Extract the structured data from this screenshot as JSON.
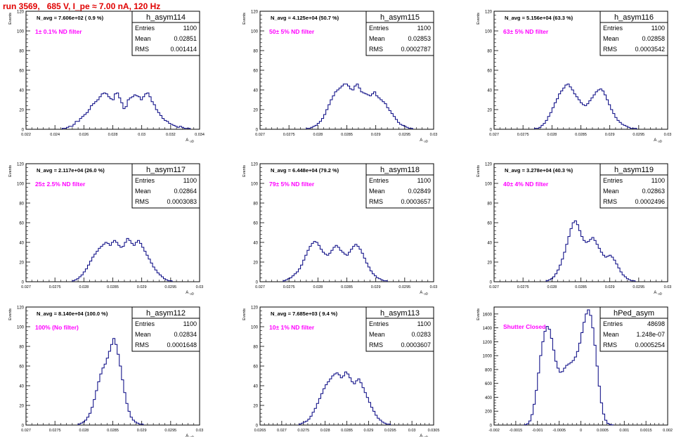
{
  "page_title": "run 3569,   685 V, I_pe ≈ 7.00 nA, 120 Hz",
  "colors": {
    "hist": "#000080",
    "label": "#ff00ff",
    "title": "#e00000",
    "frame": "#000000"
  },
  "chart_data": [
    {
      "type": "histogram",
      "name": "h_asym114",
      "navg": "N_avg = 7.606e+02 ( 0.9 %)",
      "label": "1± 0.1% ND filter",
      "stats": [
        [
          "Entries",
          "1100"
        ],
        [
          "Mean",
          "0.02851"
        ],
        [
          "RMS",
          "0.001414"
        ]
      ],
      "ylabel": "Events",
      "xlabel": "A_uD",
      "xlim": [
        0.022,
        0.034
      ],
      "ylim": [
        0,
        120
      ],
      "xticks": [
        0.022,
        0.024,
        0.026,
        0.028,
        0.03,
        0.032,
        0.034
      ],
      "xtick_labels": [
        "0.022",
        "0.024",
        "0.026",
        "0.028",
        "0.03",
        "0.032",
        "0.034"
      ],
      "yticks": [
        0,
        20,
        40,
        60,
        80,
        100,
        120
      ],
      "ytick_labels": [
        "0",
        "20",
        "40",
        "60",
        "80",
        "100",
        "120"
      ],
      "bins": {
        "start": 0.0245,
        "width": 0.00015,
        "values": [
          1,
          1,
          2,
          3,
          3,
          5,
          8,
          8,
          11,
          13,
          15,
          17,
          20,
          24,
          26,
          28,
          30,
          33,
          36,
          37,
          36,
          33,
          31,
          30,
          36,
          37,
          32,
          27,
          21,
          23,
          30,
          32,
          33,
          35,
          34,
          33,
          30,
          33,
          36,
          37,
          33,
          28,
          25,
          20,
          17,
          14,
          11,
          9,
          8,
          6,
          5,
          4,
          3,
          2,
          3,
          2,
          1,
          1,
          1
        ]
      }
    },
    {
      "type": "histogram",
      "name": "h_asym115",
      "navg": "N_avg = 4.125e+04 (50.7 %)",
      "label": "50± 5% ND filter",
      "stats": [
        [
          "Entries",
          "1100"
        ],
        [
          "Mean",
          "0.02853"
        ],
        [
          "RMS",
          "0.0002787"
        ]
      ],
      "ylabel": "Events",
      "xlabel": "A_uD",
      "xlim": [
        0.027,
        0.03
      ],
      "ylim": [
        0,
        120
      ],
      "xticks": [
        0.027,
        0.0275,
        0.028,
        0.0285,
        0.029,
        0.0295,
        0.03
      ],
      "xtick_labels": [
        "0.027",
        "0.0275",
        "0.028",
        "0.0285",
        "0.029",
        "0.0295",
        "0.03"
      ],
      "yticks": [
        0,
        20,
        40,
        60,
        80,
        100,
        120
      ],
      "ytick_labels": [
        "0",
        "20",
        "40",
        "60",
        "80",
        "100",
        "120"
      ],
      "bins": {
        "start": 0.0278,
        "width": 3.75e-05,
        "values": [
          1,
          1,
          2,
          3,
          4,
          6,
          8,
          11,
          15,
          20,
          25,
          30,
          34,
          38,
          40,
          42,
          44,
          46,
          46,
          44,
          41,
          40,
          44,
          46,
          42,
          38,
          37,
          36,
          35,
          34,
          36,
          38,
          34,
          32,
          30,
          28,
          26,
          22,
          19,
          16,
          13,
          10,
          7,
          5,
          4,
          3,
          2,
          1,
          1
        ]
      }
    },
    {
      "type": "histogram",
      "name": "h_asym116",
      "navg": "N_avg = 5.156e+04 (63.3 %)",
      "label": "63± 5% ND filter",
      "stats": [
        [
          "Entries",
          "1100"
        ],
        [
          "Mean",
          "0.02858"
        ],
        [
          "RMS",
          "0.0003542"
        ]
      ],
      "ylabel": "Events",
      "xlabel": "A_uD",
      "xlim": [
        0.027,
        0.03
      ],
      "ylim": [
        0,
        120
      ],
      "xticks": [
        0.027,
        0.0275,
        0.028,
        0.0285,
        0.029,
        0.0295,
        0.03
      ],
      "xtick_labels": [
        "0.027",
        "0.0275",
        "0.028",
        "0.0285",
        "0.029",
        "0.0295",
        "0.03"
      ],
      "yticks": [
        0,
        20,
        40,
        60,
        80,
        100,
        120
      ],
      "ytick_labels": [
        "0",
        "20",
        "40",
        "60",
        "80",
        "100",
        "120"
      ],
      "bins": {
        "start": 0.0277,
        "width": 3.75e-05,
        "values": [
          1,
          1,
          2,
          4,
          6,
          9,
          13,
          17,
          22,
          27,
          31,
          36,
          39,
          42,
          45,
          46,
          43,
          40,
          36,
          33,
          30,
          27,
          25,
          24,
          26,
          29,
          32,
          35,
          38,
          40,
          41,
          39,
          35,
          30,
          25,
          20,
          16,
          12,
          9,
          7,
          5,
          4,
          3,
          2,
          1,
          1,
          1
        ]
      }
    },
    {
      "type": "histogram",
      "name": "h_asym117",
      "navg": "N_avg = 2.117e+04 (26.0 %)",
      "label": "25± 2.5% ND filter",
      "stats": [
        [
          "Entries",
          "1100"
        ],
        [
          "Mean",
          "0.02864"
        ],
        [
          "RMS",
          "0.0003083"
        ]
      ],
      "ylabel": "Events",
      "xlabel": "A_uD",
      "xlim": [
        0.027,
        0.03
      ],
      "ylim": [
        0,
        120
      ],
      "xticks": [
        0.027,
        0.0275,
        0.028,
        0.0285,
        0.029,
        0.0295,
        0.03
      ],
      "xtick_labels": [
        "0.027",
        "0.0275",
        "0.028",
        "0.0285",
        "0.029",
        "0.0295",
        "0.03"
      ],
      "yticks": [
        0,
        20,
        40,
        60,
        80,
        100,
        120
      ],
      "ytick_labels": [
        "0",
        "20",
        "40",
        "60",
        "80",
        "100",
        "120"
      ],
      "bins": {
        "start": 0.0278,
        "width": 3.75e-05,
        "values": [
          1,
          2,
          3,
          5,
          7,
          10,
          13,
          17,
          21,
          25,
          28,
          31,
          34,
          36,
          38,
          40,
          39,
          37,
          40,
          42,
          40,
          37,
          35,
          36,
          40,
          44,
          42,
          39,
          37,
          40,
          42,
          39,
          35,
          31,
          27,
          23,
          19,
          15,
          12,
          9,
          7,
          5,
          3,
          2,
          1,
          1
        ]
      }
    },
    {
      "type": "histogram",
      "name": "h_asym118",
      "navg": "N_avg = 6.448e+04 (79.2 %)",
      "label": "79± 5% ND filter",
      "stats": [
        [
          "Entries",
          "1100"
        ],
        [
          "Mean",
          "0.02849"
        ],
        [
          "RMS",
          "0.0003657"
        ]
      ],
      "ylabel": "Events",
      "xlabel": "A_uD",
      "xlim": [
        0.027,
        0.03
      ],
      "ylim": [
        0,
        120
      ],
      "xticks": [
        0.027,
        0.0275,
        0.028,
        0.0285,
        0.029,
        0.0295,
        0.03
      ],
      "xtick_labels": [
        "0.027",
        "0.0275",
        "0.028",
        "0.0285",
        "0.029",
        "0.0295",
        "0.03"
      ],
      "yticks": [
        0,
        20,
        40,
        60,
        80,
        100,
        120
      ],
      "ytick_labels": [
        "0",
        "20",
        "40",
        "60",
        "80",
        "100",
        "120"
      ],
      "bins": {
        "start": 0.0274,
        "width": 3.75e-05,
        "values": [
          1,
          2,
          3,
          4,
          6,
          8,
          10,
          13,
          17,
          22,
          27,
          32,
          36,
          39,
          41,
          40,
          37,
          33,
          30,
          28,
          27,
          29,
          32,
          35,
          37,
          35,
          32,
          30,
          28,
          27,
          30,
          33,
          36,
          38,
          36,
          33,
          29,
          24,
          19,
          15,
          11,
          8,
          6,
          4,
          3,
          2,
          1,
          1
        ]
      }
    },
    {
      "type": "histogram",
      "name": "h_asym119",
      "navg": "N_avg = 3.278e+04 (40.3 %)",
      "label": "40± 4% ND filter",
      "stats": [
        [
          "Entries",
          "1100"
        ],
        [
          "Mean",
          "0.02863"
        ],
        [
          "RMS",
          "0.0002496"
        ]
      ],
      "ylabel": "Events",
      "xlabel": "A_uD",
      "xlim": [
        0.027,
        0.03
      ],
      "ylim": [
        0,
        120
      ],
      "xticks": [
        0.027,
        0.0275,
        0.028,
        0.0285,
        0.029,
        0.0295,
        0.03
      ],
      "xtick_labels": [
        "0.027",
        "0.0275",
        "0.028",
        "0.0285",
        "0.029",
        "0.0295",
        "0.03"
      ],
      "yticks": [
        0,
        20,
        40,
        60,
        80,
        100,
        120
      ],
      "ytick_labels": [
        "0",
        "20",
        "40",
        "60",
        "80",
        "100",
        "120"
      ],
      "bins": {
        "start": 0.0279,
        "width": 3.75e-05,
        "values": [
          1,
          2,
          3,
          5,
          8,
          12,
          17,
          23,
          30,
          38,
          46,
          54,
          60,
          62,
          58,
          52,
          46,
          42,
          40,
          41,
          43,
          45,
          42,
          38,
          34,
          30,
          27,
          25,
          26,
          27,
          25,
          22,
          18,
          14,
          10,
          7,
          5,
          3,
          2,
          1,
          1
        ]
      }
    },
    {
      "type": "histogram",
      "name": "h_asym112",
      "navg": "N_avg = 8.140e+04 (100.0 %)",
      "label": "100% (No filter)",
      "stats": [
        [
          "Entries",
          "1100"
        ],
        [
          "Mean",
          "0.02834"
        ],
        [
          "RMS",
          "0.0001648"
        ]
      ],
      "ylabel": "Events",
      "xlabel": "A_uD",
      "xlim": [
        0.027,
        0.03
      ],
      "ylim": [
        0,
        120
      ],
      "xticks": [
        0.027,
        0.0275,
        0.028,
        0.0285,
        0.029,
        0.0295,
        0.03
      ],
      "xtick_labels": [
        "0.027",
        "0.0275",
        "0.028",
        "0.0285",
        "0.029",
        "0.0295",
        "0.03"
      ],
      "yticks": [
        0,
        20,
        40,
        60,
        80,
        100,
        120
      ],
      "ytick_labels": [
        "0",
        "20",
        "40",
        "60",
        "80",
        "100",
        "120"
      ],
      "bins": {
        "start": 0.0279,
        "width": 3.75e-05,
        "values": [
          1,
          2,
          3,
          5,
          8,
          12,
          18,
          26,
          35,
          44,
          52,
          58,
          62,
          68,
          75,
          82,
          88,
          82,
          72,
          60,
          46,
          33,
          22,
          14,
          8,
          5,
          3,
          2,
          1,
          1
        ]
      }
    },
    {
      "type": "histogram",
      "name": "h_asym113",
      "navg": "N_avg = 7.685e+03 ( 9.4 %)",
      "label": "10± 1% ND filter",
      "stats": [
        [
          "Entries",
          "1100"
        ],
        [
          "Mean",
          "0.0283"
        ],
        [
          "RMS",
          "0.0003607"
        ]
      ],
      "ylabel": "Events",
      "xlabel": "A_uD",
      "xlim": [
        0.0265,
        0.0305
      ],
      "ylim": [
        0,
        120
      ],
      "xticks": [
        0.0265,
        0.027,
        0.0275,
        0.028,
        0.0285,
        0.029,
        0.0295,
        0.03,
        0.0305
      ],
      "xtick_labels": [
        "0.0265",
        "0.027",
        "0.0275",
        "0.028",
        "0.0285",
        "0.029",
        "0.0295",
        "0.03",
        "0.0305"
      ],
      "yticks": [
        0,
        20,
        40,
        60,
        80,
        100,
        120
      ],
      "ytick_labels": [
        "0",
        "20",
        "40",
        "60",
        "80",
        "100",
        "120"
      ],
      "bins": {
        "start": 0.0274,
        "width": 5e-05,
        "values": [
          1,
          2,
          3,
          4,
          6,
          9,
          13,
          17,
          22,
          27,
          32,
          37,
          41,
          44,
          47,
          50,
          52,
          53,
          51,
          48,
          50,
          54,
          52,
          48,
          44,
          42,
          45,
          47,
          43,
          38,
          33,
          28,
          23,
          18,
          14,
          10,
          7,
          5,
          3,
          2,
          1,
          1
        ]
      }
    },
    {
      "type": "histogram",
      "name": "hPed_asym",
      "navg": "",
      "label": "Shutter Closed",
      "stats": [
        [
          "Entries",
          "48698"
        ],
        [
          "Mean",
          "1.248e-07"
        ],
        [
          "RMS",
          "0.0005254"
        ]
      ],
      "ylabel": "Events",
      "xlabel": "",
      "xlim": [
        -0.002,
        0.002
      ],
      "ylim": [
        0,
        1700
      ],
      "xticks": [
        -0.002,
        -0.0015,
        -0.001,
        -0.0005,
        0,
        0.0005,
        0.001,
        0.0015,
        0.002
      ],
      "xtick_labels": [
        "-0.002",
        "-0.0015",
        "-0.001",
        "-0.0005",
        "0",
        "0.0005",
        "0.001",
        "0.0015",
        "0.002"
      ],
      "yticks": [
        0,
        200,
        400,
        600,
        800,
        1000,
        1200,
        1400,
        1600
      ],
      "ytick_labels": [
        "0",
        "200",
        "400",
        "600",
        "800",
        "1000",
        "1200",
        "1400",
        "1600"
      ],
      "bins": {
        "start": -0.0013,
        "width": 5e-05,
        "values": [
          5,
          20,
          60,
          150,
          300,
          500,
          750,
          1000,
          1200,
          1350,
          1420,
          1380,
          1250,
          1080,
          920,
          820,
          760,
          770,
          820,
          860,
          880,
          900,
          930,
          980,
          1060,
          1180,
          1330,
          1480,
          1600,
          1660,
          1580,
          1400,
          1150,
          850,
          560,
          320,
          160,
          70,
          25,
          8,
          3
        ]
      }
    }
  ]
}
